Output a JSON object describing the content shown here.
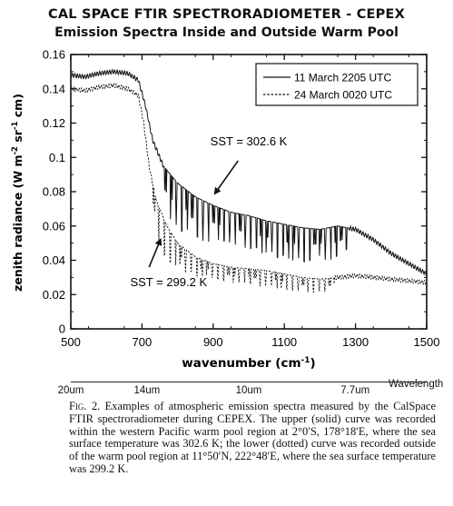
{
  "chart_data": {
    "type": "line",
    "title": "CAL SPACE FTIR SPECTRORADIOMETER - CEPEX",
    "subtitle": "Emission Spectra Inside and Outside Warm Pool",
    "xlabel": "wavenumber (cm",
    "xlabel_sup": "-1",
    "xlabel_end": ")",
    "ylabel_parts": [
      "zenith radiance (W m",
      "-2",
      " sr",
      "-1",
      " cm)"
    ],
    "xlim": [
      500,
      1500
    ],
    "ylim": [
      0,
      0.16
    ],
    "xticks": [
      500,
      700,
      900,
      1100,
      1300,
      1500
    ],
    "yticks": [
      0,
      0.02,
      0.04,
      0.06,
      0.08,
      0.1,
      0.12,
      0.14,
      0.16
    ],
    "ytick_labels": [
      "0",
      "0.02",
      "0.04",
      "0.06",
      "0.08",
      "0.1",
      "0.12",
      "0.14",
      "0.16"
    ],
    "legend_position": "top-right",
    "series": [
      {
        "name": "11 March 2205 UTC",
        "style": "solid",
        "baseline": [
          [
            500,
            0.148
          ],
          [
            540,
            0.147
          ],
          [
            580,
            0.149
          ],
          [
            620,
            0.15
          ],
          [
            660,
            0.149
          ],
          [
            690,
            0.145
          ],
          [
            710,
            0.13
          ],
          [
            730,
            0.11
          ],
          [
            760,
            0.095
          ],
          [
            800,
            0.085
          ],
          [
            850,
            0.077
          ],
          [
            900,
            0.072
          ],
          [
            950,
            0.068
          ],
          [
            1000,
            0.066
          ],
          [
            1050,
            0.063
          ],
          [
            1100,
            0.061
          ],
          [
            1150,
            0.059
          ],
          [
            1200,
            0.058
          ],
          [
            1250,
            0.06
          ],
          [
            1300,
            0.058
          ],
          [
            1350,
            0.052
          ],
          [
            1400,
            0.044
          ],
          [
            1450,
            0.038
          ],
          [
            1500,
            0.032
          ]
        ],
        "dips": [
          [
            760,
            0.068
          ],
          [
            775,
            0.06
          ],
          [
            790,
            0.058
          ],
          [
            810,
            0.052
          ],
          [
            825,
            0.055
          ],
          [
            840,
            0.048
          ],
          [
            860,
            0.05
          ],
          [
            880,
            0.045
          ],
          [
            900,
            0.05
          ],
          [
            920,
            0.048
          ],
          [
            940,
            0.048
          ],
          [
            960,
            0.046
          ],
          [
            980,
            0.045
          ],
          [
            1000,
            0.043
          ],
          [
            1020,
            0.045
          ],
          [
            1040,
            0.04
          ],
          [
            1060,
            0.043
          ],
          [
            1080,
            0.038
          ],
          [
            1100,
            0.04
          ],
          [
            1120,
            0.036
          ],
          [
            1140,
            0.038
          ],
          [
            1160,
            0.035
          ],
          [
            1180,
            0.038
          ],
          [
            1200,
            0.04
          ],
          [
            1220,
            0.036
          ],
          [
            1240,
            0.038
          ],
          [
            1260,
            0.042
          ],
          [
            1280,
            0.045
          ]
        ]
      },
      {
        "name": "24 March 0020 UTC",
        "style": "dotted",
        "baseline": [
          [
            500,
            0.14
          ],
          [
            540,
            0.139
          ],
          [
            580,
            0.141
          ],
          [
            620,
            0.142
          ],
          [
            660,
            0.14
          ],
          [
            690,
            0.136
          ],
          [
            705,
            0.12
          ],
          [
            720,
            0.095
          ],
          [
            740,
            0.075
          ],
          [
            770,
            0.06
          ],
          [
            800,
            0.05
          ],
          [
            850,
            0.042
          ],
          [
            900,
            0.038
          ],
          [
            950,
            0.036
          ],
          [
            1000,
            0.035
          ],
          [
            1050,
            0.034
          ],
          [
            1100,
            0.032
          ],
          [
            1150,
            0.03
          ],
          [
            1200,
            0.029
          ],
          [
            1250,
            0.03
          ],
          [
            1300,
            0.031
          ],
          [
            1350,
            0.03
          ],
          [
            1400,
            0.029
          ],
          [
            1450,
            0.028
          ],
          [
            1500,
            0.027
          ]
        ],
        "dips": [
          [
            730,
            0.06
          ],
          [
            745,
            0.05
          ],
          [
            760,
            0.04
          ],
          [
            775,
            0.036
          ],
          [
            790,
            0.034
          ],
          [
            805,
            0.036
          ],
          [
            820,
            0.03
          ],
          [
            840,
            0.032
          ],
          [
            860,
            0.028
          ],
          [
            880,
            0.03
          ],
          [
            900,
            0.028
          ],
          [
            920,
            0.027
          ],
          [
            940,
            0.026
          ],
          [
            960,
            0.025
          ],
          [
            980,
            0.026
          ],
          [
            1000,
            0.025
          ],
          [
            1020,
            0.024
          ],
          [
            1040,
            0.023
          ],
          [
            1060,
            0.024
          ],
          [
            1080,
            0.022
          ],
          [
            1100,
            0.022
          ],
          [
            1120,
            0.021
          ],
          [
            1140,
            0.021
          ],
          [
            1160,
            0.02
          ],
          [
            1180,
            0.02
          ],
          [
            1200,
            0.021
          ],
          [
            1220,
            0.02
          ],
          [
            1240,
            0.022
          ]
        ]
      }
    ],
    "annotations": [
      {
        "text": "SST = 302.6 K",
        "x": 1000,
        "y": 0.107,
        "arrow_from": [
          970,
          0.098
        ],
        "arrow_to": [
          905,
          0.079
        ]
      },
      {
        "text": "SST = 299.2 K",
        "x": 775,
        "y": 0.025,
        "arrow_from": [
          720,
          0.036
        ],
        "arrow_to": [
          752,
          0.052
        ]
      }
    ]
  },
  "wavelength_axis": {
    "title": "Wavelength",
    "ticks": [
      {
        "label": "20um",
        "wavenumber": 500
      },
      {
        "label": "14um",
        "wavenumber": 714
      },
      {
        "label": "10um",
        "wavenumber": 1000
      },
      {
        "label": "7.7um",
        "wavenumber": 1299
      }
    ]
  },
  "caption": {
    "fig_label": "Fig. 2.",
    "text": " Examples of atmospheric emission spectra measured by the CalSpace FTIR spectroradiometer during CEPEX. The upper (solid) curve was recorded within the western Pacific warm pool region at 2°0′S, 178°18′E, where the sea surface temperature was 302.6 K; the lower (dotted) curve was recorded outside of the warm pool region at 11°50′N, 222°48′E, where the sea surface temperature was 299.2 K."
  }
}
